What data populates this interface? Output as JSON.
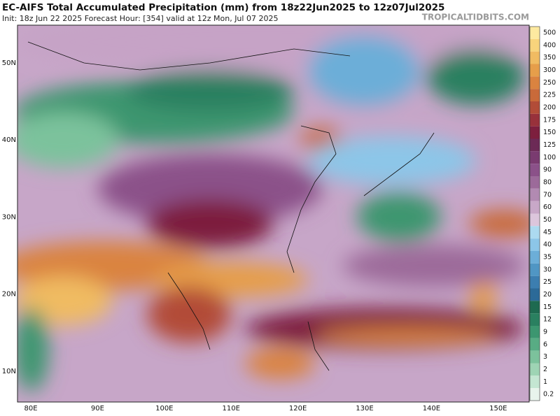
{
  "header": {
    "title": "EC-AIFS Total Accumulated Precipitation (mm) from 18z22Jun2025 to 12z07Jul2025",
    "subtitle": "Init: 18z Jun 22 2025   Forecast Hour: [354]   valid at 12z Mon, Jul 07 2025",
    "watermark": "TROPICALTIDBITS.COM"
  },
  "map": {
    "lat_labels": [
      "50N",
      "40N",
      "30N",
      "20N",
      "10N"
    ],
    "lon_labels": [
      "80E",
      "90E",
      "100E",
      "110E",
      "120E",
      "130E",
      "140E",
      "150E"
    ]
  },
  "legend": [
    {
      "label": "500",
      "color": "#fde9a0"
    },
    {
      "label": "400",
      "color": "#f8d47c"
    },
    {
      "label": "350",
      "color": "#f0bb62"
    },
    {
      "label": "300",
      "color": "#e69e4a"
    },
    {
      "label": "250",
      "color": "#da8340"
    },
    {
      "label": "225",
      "color": "#c96a3a"
    },
    {
      "label": "200",
      "color": "#b24c38"
    },
    {
      "label": "175",
      "color": "#98313b"
    },
    {
      "label": "150",
      "color": "#7d1f3e"
    },
    {
      "label": "125",
      "color": "#6c2a56"
    },
    {
      "label": "100",
      "color": "#7a3b70"
    },
    {
      "label": "90",
      "color": "#8b5189"
    },
    {
      "label": "80",
      "color": "#9c6a9a"
    },
    {
      "label": "70",
      "color": "#b28ab2"
    },
    {
      "label": "60",
      "color": "#c8a8c8"
    },
    {
      "label": "50",
      "color": "#dcc6dc"
    },
    {
      "label": "45",
      "color": "#acdaf0"
    },
    {
      "label": "40",
      "color": "#8cc6e8"
    },
    {
      "label": "35",
      "color": "#6caed8"
    },
    {
      "label": "30",
      "color": "#5096c4"
    },
    {
      "label": "25",
      "color": "#3c7eb0"
    },
    {
      "label": "20",
      "color": "#2c6a98"
    },
    {
      "label": "15",
      "color": "#1e6a50"
    },
    {
      "label": "12",
      "color": "#2a8060"
    },
    {
      "label": "9",
      "color": "#3c9670"
    },
    {
      "label": "6",
      "color": "#58ac84"
    },
    {
      "label": "3",
      "color": "#7cc29c"
    },
    {
      "label": "2",
      "color": "#9ed4b4"
    },
    {
      "label": "1",
      "color": "#c4e6d2"
    },
    {
      "label": "0.2",
      "color": "#e8f4ec"
    }
  ]
}
